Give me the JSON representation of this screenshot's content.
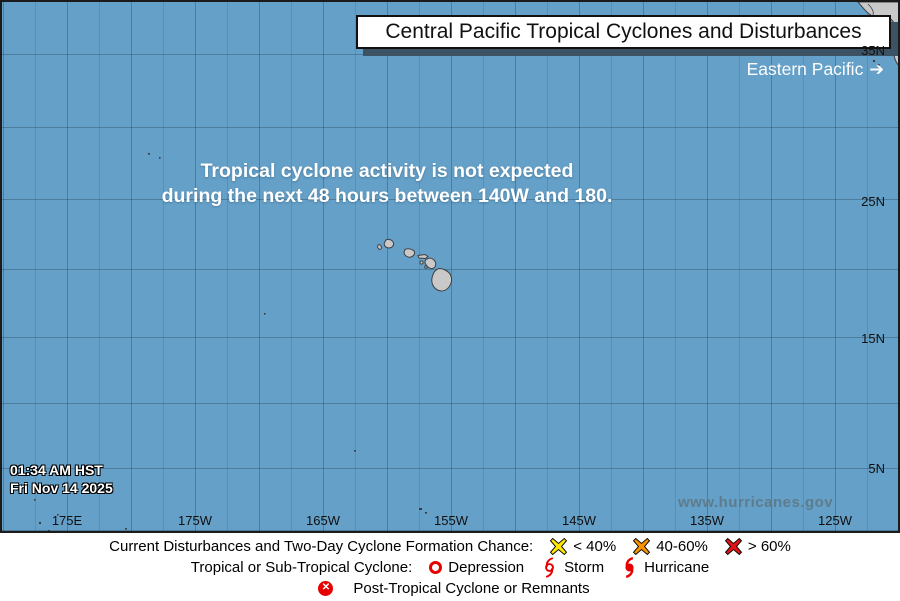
{
  "title": "Central Pacific Tropical Cyclones and Disturbances",
  "eastern_pacific_link": {
    "label": "Eastern Pacific",
    "arrow": "➔"
  },
  "message": {
    "line1": "Tropical cyclone activity is not expected",
    "line2": "during the next 48 hours between 140W and 180."
  },
  "timestamp": {
    "time": "01:34 AM HST",
    "date": "Fri Nov 14 2025"
  },
  "watermark": "www.hurricanes.gov",
  "map": {
    "ocean_color": "#65A0C8",
    "lat_labels": [
      "35N",
      "25N",
      "15N",
      "5N"
    ],
    "lon_labels": [
      "175E",
      "175W",
      "165W",
      "155W",
      "145W",
      "135W",
      "125W"
    ],
    "land": [
      "hawaiian-islands",
      "north-america-coast"
    ]
  },
  "legend": {
    "accent_red": "#e60000",
    "line1": {
      "label": "Current Disturbances and Two-Day Cyclone Formation Chance:",
      "items": [
        {
          "icon": "x-marker-yellow",
          "color": "#FFE600",
          "label": "< 40%"
        },
        {
          "icon": "x-marker-orange",
          "color": "#F79300",
          "label": "40-60%"
        },
        {
          "icon": "x-marker-red",
          "color": "#E01414",
          "label": "> 60%"
        }
      ]
    },
    "line2": {
      "label": "Tropical or Sub-Tropical Cyclone:",
      "items": [
        {
          "icon": "depression-circle",
          "label": "Depression"
        },
        {
          "icon": "storm-symbol",
          "label": "Storm"
        },
        {
          "icon": "hurricane-symbol",
          "label": "Hurricane"
        }
      ]
    },
    "line3": {
      "items": [
        {
          "icon": "post-tropical-symbol",
          "label": "Post-Tropical Cyclone or Remnants"
        }
      ]
    }
  }
}
